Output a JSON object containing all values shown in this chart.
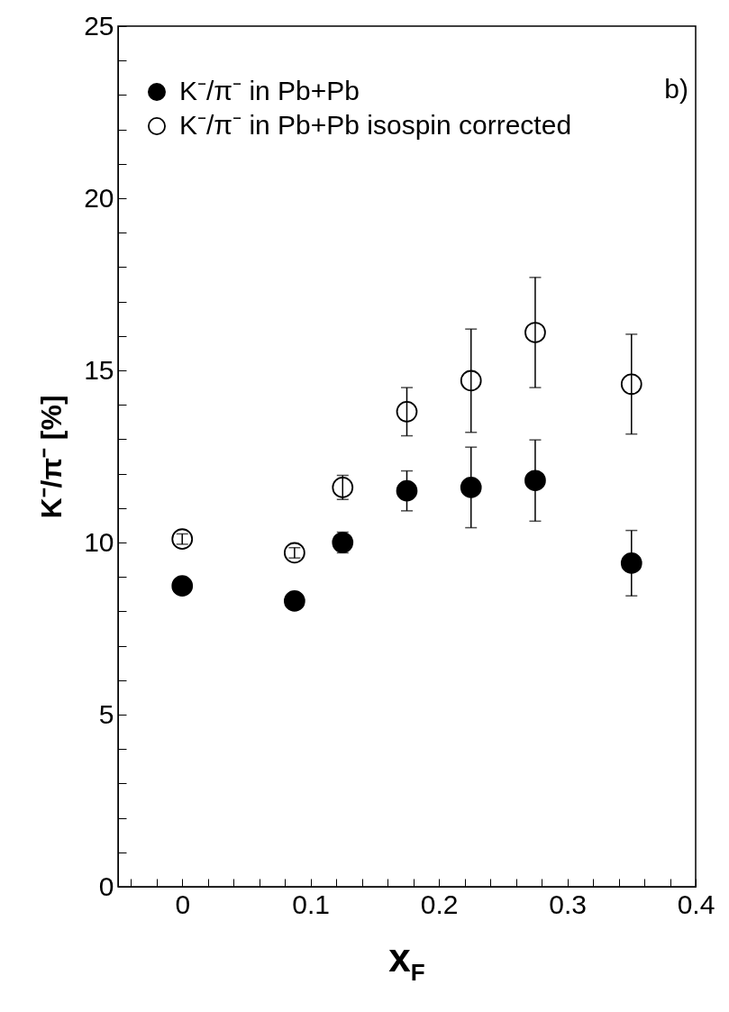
{
  "chart_data": {
    "type": "scatter",
    "xlabel": "x$_{F}$",
    "ylabel": "K⁻/π⁻  [%]",
    "annotations": [
      "b)"
    ],
    "x": [
      0,
      0.0875,
      0.125,
      0.175,
      0.225,
      0.275,
      0.35
    ],
    "series": [
      {
        "name": "K⁻/π⁻ in Pb+Pb",
        "color": "#000000",
        "marker": "circle",
        "values": [
          8.74,
          8.3,
          10.0,
          11.5,
          11.6,
          11.8,
          9.4
        ],
        "errors": [
          null,
          null,
          0.3,
          0.58,
          1.17,
          1.18,
          0.95
        ]
      },
      {
        "name": "K⁻/π⁻ in Pb+Pb  isospin corrected",
        "color": "#000000",
        "marker": "circle-open",
        "values": [
          10.1,
          9.7,
          11.6,
          13.8,
          14.7,
          16.1,
          14.6
        ],
        "errors": [
          0.15,
          0.15,
          0.35,
          0.7,
          1.5,
          1.6,
          1.45
        ]
      }
    ],
    "xlim": [
      -0.05,
      0.4
    ],
    "xticks": [
      {
        "value": -0.04,
        "label": null
      },
      {
        "value": -0.02,
        "label": null
      },
      0,
      {
        "value": 0.02,
        "label": null
      },
      {
        "value": 0.04,
        "label": null
      },
      {
        "value": 0.06,
        "label": null
      },
      {
        "value": 0.08,
        "label": null
      },
      0.1,
      {
        "value": 0.12,
        "label": null
      },
      {
        "value": 0.14,
        "label": null
      },
      {
        "value": 0.16,
        "label": null
      },
      {
        "value": 0.18,
        "label": null
      },
      0.2,
      {
        "value": 0.22,
        "label": null
      },
      {
        "value": 0.24,
        "label": null
      },
      {
        "value": 0.26,
        "label": null
      },
      {
        "value": 0.28,
        "label": null
      },
      0.3,
      {
        "value": 0.32,
        "label": null
      },
      {
        "value": 0.34,
        "label": null
      },
      {
        "value": 0.36,
        "label": null
      },
      {
        "value": 0.38,
        "label": null
      },
      0.4
    ],
    "ylim": [
      0,
      25
    ],
    "yticks": [
      0,
      {
        "value": 1,
        "label": null
      },
      {
        "value": 2,
        "label": null
      },
      {
        "value": 3,
        "label": null
      },
      {
        "value": 4,
        "label": null
      },
      5,
      {
        "value": 6,
        "label": null
      },
      {
        "value": 7,
        "label": null
      },
      {
        "value": 8,
        "label": null
      },
      {
        "value": 9,
        "label": null
      },
      10,
      {
        "value": 11,
        "label": null
      },
      {
        "value": 12,
        "label": null
      },
      {
        "value": 13,
        "label": null
      },
      {
        "value": 14,
        "label": null
      },
      15,
      {
        "value": 16,
        "label": null
      },
      {
        "value": 17,
        "label": null
      },
      {
        "value": 18,
        "label": null
      },
      {
        "value": 19,
        "label": null
      },
      20,
      {
        "value": 21,
        "label": null
      },
      {
        "value": 22,
        "label": null
      },
      {
        "value": 23,
        "label": null
      },
      {
        "value": 24,
        "label": null
      },
      25
    ],
    "grid": false,
    "legend": "top left"
  }
}
